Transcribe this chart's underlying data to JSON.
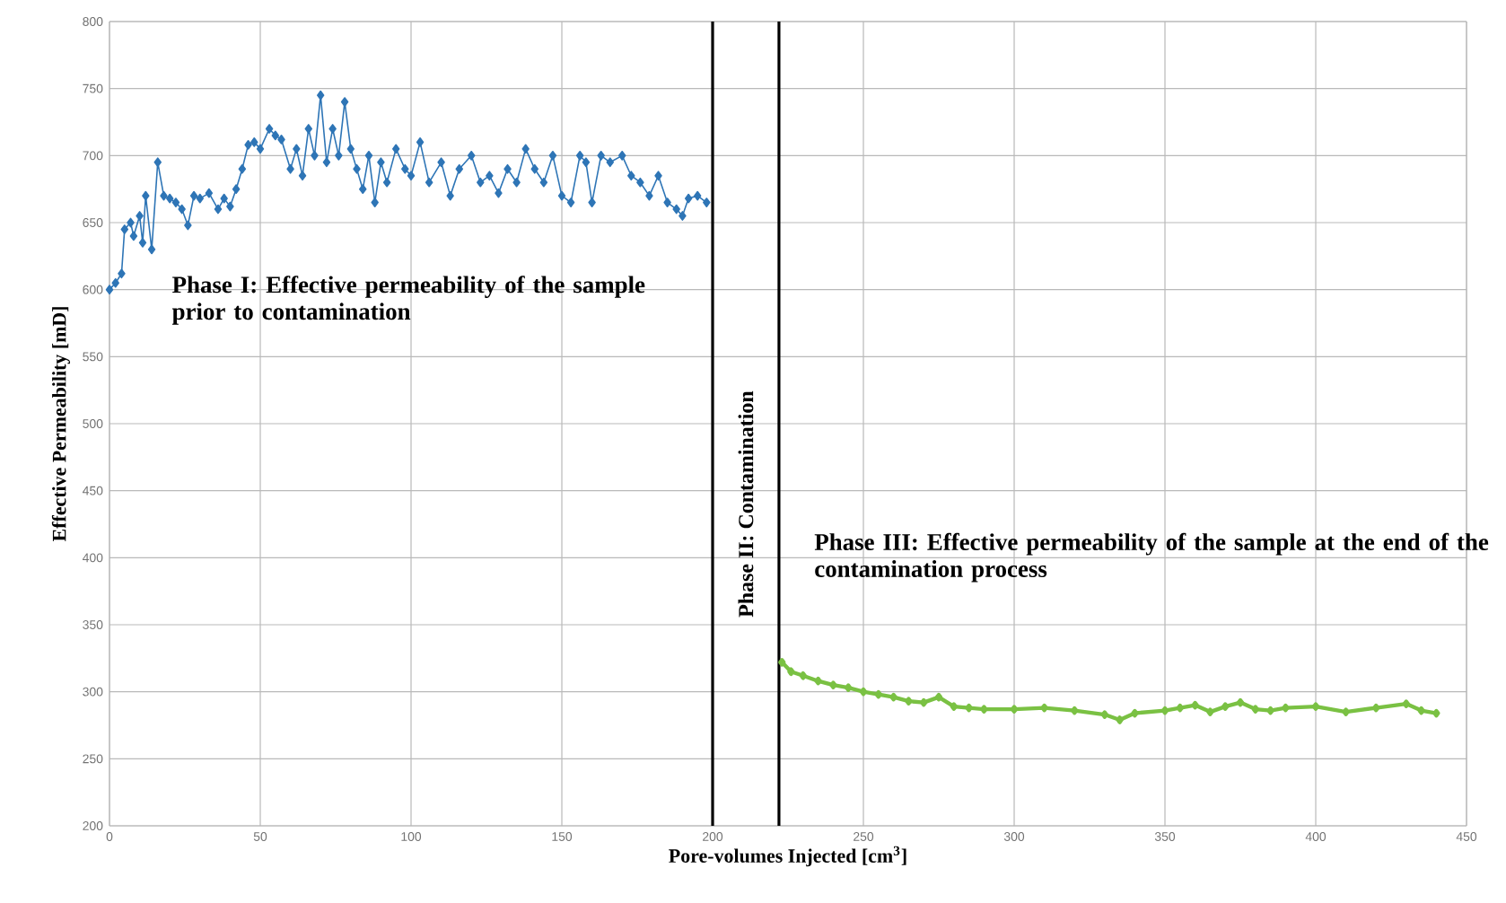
{
  "chart_data": {
    "type": "line",
    "xlabel": "Pore-volumes Injected [cm$^{3}$]",
    "ylabel": "Effective Permeability [mD]",
    "xlim": [
      0,
      450
    ],
    "ylim": [
      200,
      800
    ],
    "xticks": [
      0,
      50,
      100,
      150,
      200,
      250,
      300,
      350,
      400,
      450
    ],
    "yticks": [
      200,
      250,
      300,
      350,
      400,
      450,
      500,
      550,
      600,
      650,
      700,
      750,
      800
    ],
    "grid": true,
    "marker": "diamond",
    "line_style": "solid",
    "series": [
      {
        "color": "#2e75b6",
        "x": [
          0,
          2,
          4,
          5,
          7,
          8,
          10,
          11,
          12,
          14,
          16,
          18,
          20,
          22,
          24,
          26,
          28,
          30,
          33,
          36,
          38,
          40,
          42,
          44,
          46,
          48,
          50,
          53,
          55,
          57,
          60,
          62,
          64,
          66,
          68,
          70,
          72,
          74,
          76,
          78,
          80,
          82,
          84,
          86,
          88,
          90,
          92,
          95,
          98,
          100,
          103,
          106,
          110,
          113,
          116,
          120,
          123,
          126,
          129,
          132,
          135,
          138,
          141,
          144,
          147,
          150,
          153,
          156,
          158,
          160,
          163,
          166,
          170,
          173,
          176,
          179,
          182,
          185,
          188,
          190,
          192,
          195,
          198
        ],
        "values": [
          600,
          605,
          612,
          645,
          650,
          640,
          655,
          635,
          670,
          630,
          695,
          670,
          668,
          665,
          660,
          648,
          670,
          668,
          672,
          660,
          668,
          662,
          675,
          690,
          708,
          710,
          705,
          720,
          715,
          712,
          690,
          705,
          685,
          720,
          700,
          745,
          695,
          720,
          700,
          740,
          705,
          690,
          675,
          700,
          665,
          695,
          680,
          705,
          690,
          685,
          710,
          680,
          695,
          670,
          690,
          700,
          680,
          685,
          672,
          690,
          680,
          705,
          690,
          680,
          700,
          670,
          665,
          700,
          695,
          665,
          700,
          695,
          700,
          685,
          680,
          670,
          685,
          665,
          660,
          655,
          668,
          670,
          665
        ]
      },
      {
        "color": "#7ac143",
        "x": [
          223,
          226,
          230,
          235,
          240,
          245,
          250,
          255,
          260,
          265,
          270,
          275,
          280,
          285,
          290,
          300,
          310,
          320,
          330,
          335,
          340,
          350,
          355,
          360,
          365,
          370,
          375,
          380,
          385,
          390,
          400,
          410,
          420,
          430,
          435,
          440
        ],
        "values": [
          322,
          315,
          312,
          308,
          305,
          303,
          300,
          298,
          296,
          293,
          292,
          296,
          289,
          288,
          287,
          287,
          288,
          286,
          283,
          279,
          284,
          286,
          288,
          290,
          285,
          289,
          292,
          287,
          286,
          288,
          289,
          285,
          288,
          291,
          286,
          284
        ]
      }
    ],
    "ref_lines": [
      {
        "axis": "x",
        "value": 200,
        "label": "Phase II: Contamination",
        "color": "#000000"
      },
      {
        "axis": "x",
        "value": 222,
        "color": "#000000"
      }
    ],
    "annotations": [
      "Phase I: Effective permeability of the sample prior to contamination",
      "Phase III: Effective permeability of the sample at the end of the contamination process"
    ]
  }
}
